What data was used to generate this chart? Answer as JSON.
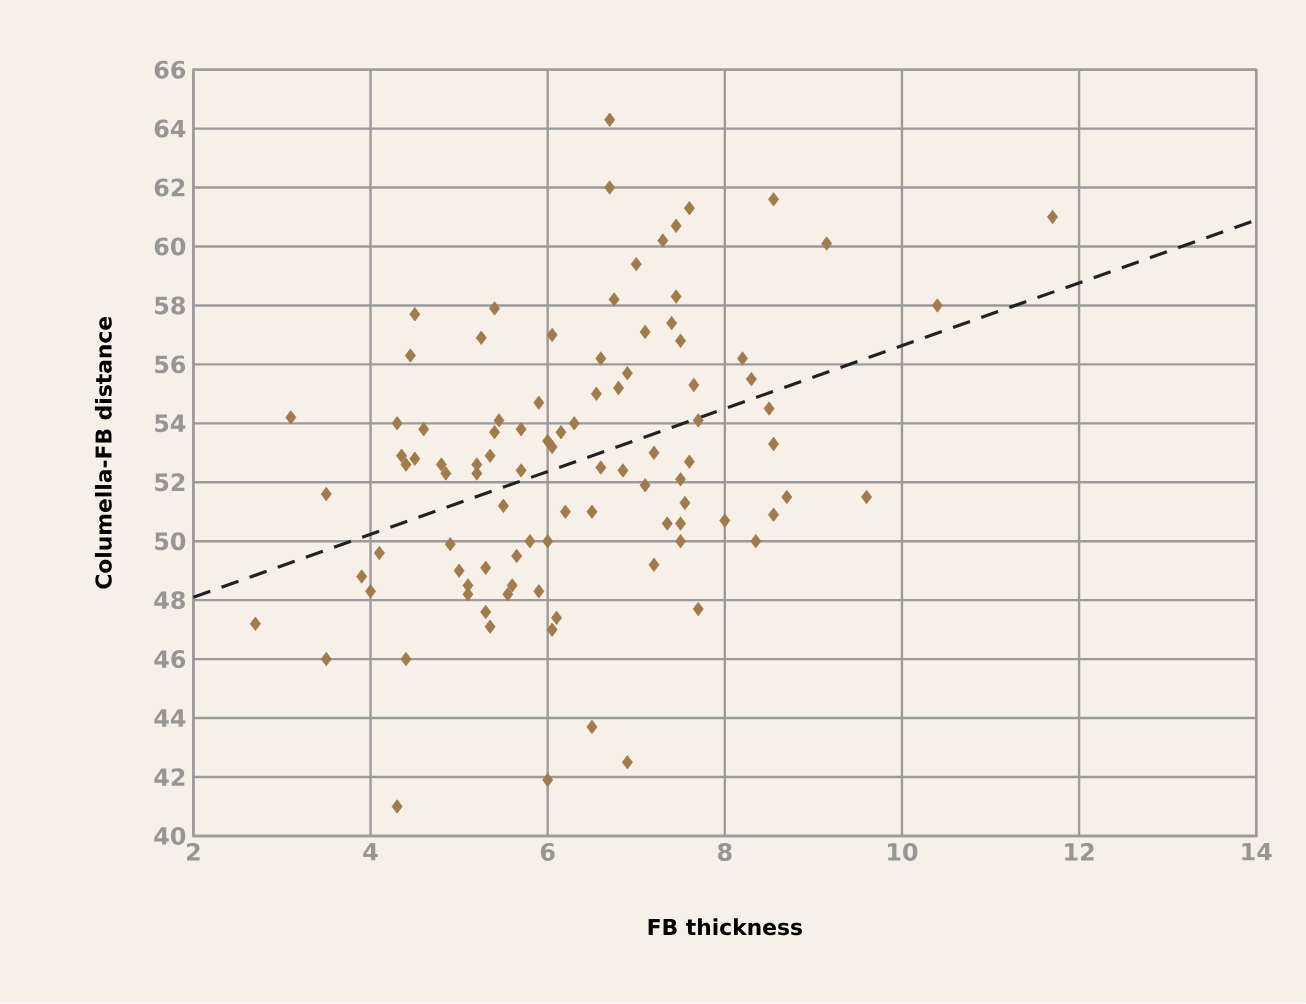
{
  "chart_data": {
    "type": "scatter",
    "xlabel": "FB thickness",
    "ylabel": "Columella-FB distance",
    "xlim": [
      2,
      14
    ],
    "ylim": [
      40,
      66
    ],
    "xticks": [
      2,
      4,
      6,
      8,
      10,
      12,
      14
    ],
    "yticks": [
      40,
      42,
      44,
      46,
      48,
      50,
      52,
      54,
      56,
      58,
      60,
      62,
      64,
      66
    ],
    "grid": true,
    "series": [
      {
        "color": "#a27b4c",
        "marker": "diamond",
        "x": [
          2.7,
          3.1,
          3.5,
          3.5,
          3.9,
          4.0,
          4.1,
          4.3,
          4.35,
          4.4,
          4.4,
          4.45,
          4.5,
          4.5,
          4.6,
          4.3,
          4.8,
          4.85,
          4.9,
          5.0,
          5.1,
          5.1,
          5.2,
          5.2,
          5.25,
          5.3,
          5.3,
          5.35,
          5.35,
          5.4,
          5.4,
          5.45,
          5.5,
          5.55,
          5.6,
          5.65,
          5.7,
          5.7,
          5.8,
          5.9,
          5.9,
          6.0,
          6.0,
          6.05,
          6.05,
          6.05,
          6.1,
          6.15,
          6.2,
          6.3,
          6.0,
          6.5,
          6.5,
          6.55,
          6.6,
          6.6,
          6.7,
          6.7,
          6.75,
          6.8,
          6.85,
          6.9,
          6.9,
          7.0,
          7.1,
          7.1,
          7.2,
          7.2,
          7.3,
          7.35,
          7.4,
          7.45,
          7.45,
          7.5,
          7.5,
          7.5,
          7.5,
          7.55,
          7.6,
          7.6,
          7.65,
          7.7,
          7.7,
          8.0,
          8.2,
          8.3,
          8.35,
          8.5,
          8.55,
          8.55,
          8.55,
          8.7,
          9.15,
          9.6,
          10.4,
          11.7
        ],
        "values": [
          47.2,
          54.2,
          51.6,
          46.0,
          48.8,
          48.3,
          49.6,
          54.0,
          52.9,
          46.0,
          52.6,
          56.3,
          57.7,
          52.8,
          53.8,
          41.0,
          52.6,
          52.3,
          49.9,
          49.0,
          48.5,
          48.2,
          52.3,
          52.6,
          56.9,
          49.1,
          47.6,
          52.9,
          47.1,
          53.7,
          57.9,
          54.1,
          51.2,
          48.2,
          48.5,
          49.5,
          52.4,
          53.8,
          50.0,
          54.7,
          48.3,
          53.4,
          50.0,
          53.2,
          57.0,
          47.0,
          47.4,
          53.7,
          51.0,
          54.0,
          41.9,
          51.0,
          43.7,
          55.0,
          56.2,
          52.5,
          64.3,
          62.0,
          58.2,
          55.2,
          52.4,
          55.7,
          42.5,
          59.4,
          51.9,
          57.1,
          53.0,
          49.2,
          60.2,
          50.6,
          57.4,
          60.7,
          58.3,
          56.8,
          52.1,
          50.6,
          50.0,
          51.3,
          52.7,
          61.3,
          55.3,
          47.7,
          54.1,
          50.7,
          56.2,
          55.5,
          50.0,
          54.5,
          53.3,
          50.9,
          61.6,
          51.5,
          60.1,
          51.5,
          58.0,
          61.0
        ]
      },
      {
        "type": "line",
        "color": "#222222",
        "line_style": "dashed",
        "x": [
          2,
          14
        ],
        "values": [
          48.1,
          60.9
        ]
      }
    ]
  }
}
